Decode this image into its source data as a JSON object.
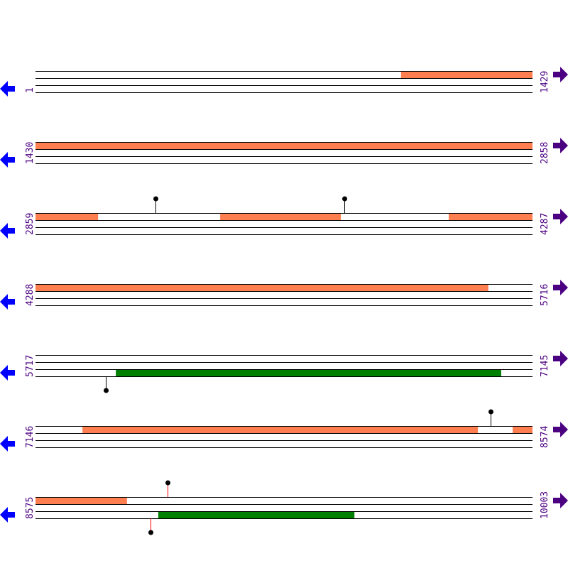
{
  "colors": {
    "line": "#000000",
    "orange_feature": "#ff7f50",
    "green_feature": "#008000",
    "left_arrow": "#0000ff",
    "right_arrow": "#4b0082",
    "label": "#4b0082",
    "red_stem": "#ff0000"
  },
  "icons": {
    "left": "arrow-left-icon",
    "right": "arrow-right-icon"
  },
  "rows": [
    {
      "start": "1",
      "end": "1429",
      "features": [
        {
          "track": "top",
          "from": 1052,
          "to": 1429,
          "color": "#ff7f50"
        }
      ],
      "markers": []
    },
    {
      "start": "1430",
      "end": "2858",
      "features": [
        {
          "track": "top",
          "from": 1430,
          "to": 2858,
          "color": "#ff7f50"
        }
      ],
      "markers": []
    },
    {
      "start": "2859",
      "end": "4287",
      "features": [
        {
          "track": "top",
          "from": 2859,
          "to": 3039,
          "color": "#ff7f50"
        },
        {
          "track": "top",
          "from": 3390,
          "to": 3737,
          "color": "#ff7f50"
        },
        {
          "track": "top",
          "from": 4047,
          "to": 4287,
          "color": "#ff7f50"
        }
      ],
      "markers": [
        {
          "pos": 3204,
          "dir": "up",
          "stem": "#000000"
        },
        {
          "pos": 3747,
          "dir": "up",
          "stem": "#000000"
        }
      ]
    },
    {
      "start": "4288",
      "end": "5716",
      "features": [
        {
          "track": "top",
          "from": 4288,
          "to": 5590,
          "color": "#ff7f50"
        }
      ],
      "markers": []
    },
    {
      "start": "5717",
      "end": "7145",
      "features": [
        {
          "track": "bottom",
          "from": 5948,
          "to": 7056,
          "color": "#008000"
        }
      ],
      "markers": [
        {
          "pos": 5919,
          "dir": "down",
          "stem": "#000000"
        }
      ]
    },
    {
      "start": "7146",
      "end": "8574",
      "features": [
        {
          "track": "top",
          "from": 7281,
          "to": 8418,
          "color": "#ff7f50"
        },
        {
          "track": "top",
          "from": 8518,
          "to": 8574,
          "color": "#ff7f50"
        }
      ],
      "markers": [
        {
          "pos": 8454,
          "dir": "up",
          "stem": "#000000"
        }
      ]
    },
    {
      "start": "8575",
      "end": "10003",
      "features": [
        {
          "track": "top",
          "from": 8575,
          "to": 8838,
          "color": "#ff7f50"
        },
        {
          "track": "bottom",
          "from": 8928,
          "to": 9492,
          "color": "#008000"
        }
      ],
      "markers": [
        {
          "pos": 8955,
          "dir": "up",
          "stem": "#ff0000"
        },
        {
          "pos": 8906,
          "dir": "down",
          "stem": "#ff0000"
        }
      ]
    }
  ]
}
